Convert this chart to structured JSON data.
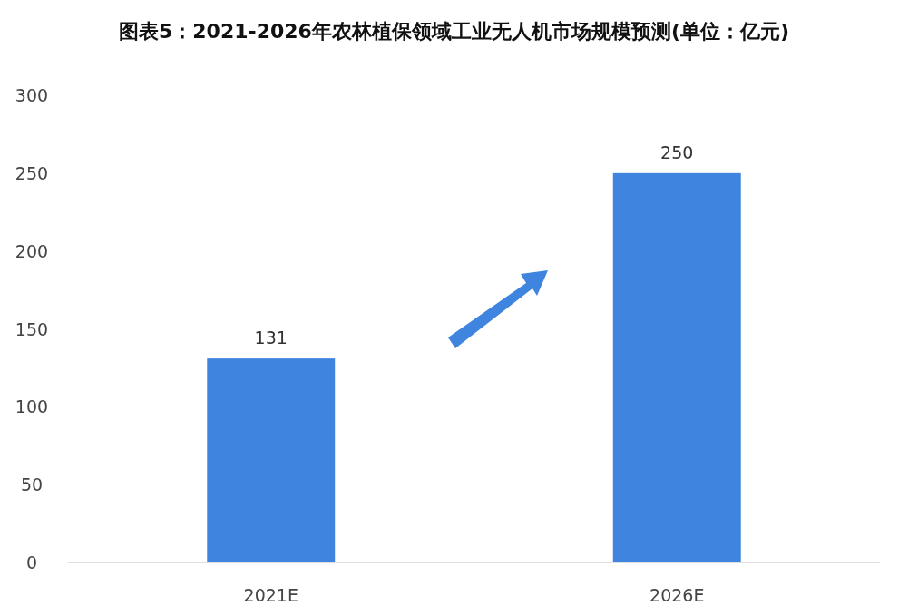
{
  "chart_data": {
    "type": "bar",
    "title": "图表5：2021-2026年农林植保领域工业无人机市场规模预测(单位：亿元)",
    "categories": [
      "2021E",
      "2026E"
    ],
    "values": [
      131,
      250
    ],
    "color": "#3f85e0",
    "ylim": [
      0,
      300
    ],
    "yticks": [
      0,
      50,
      100,
      150,
      200,
      250,
      300
    ],
    "grid": false,
    "data_labels": true
  }
}
